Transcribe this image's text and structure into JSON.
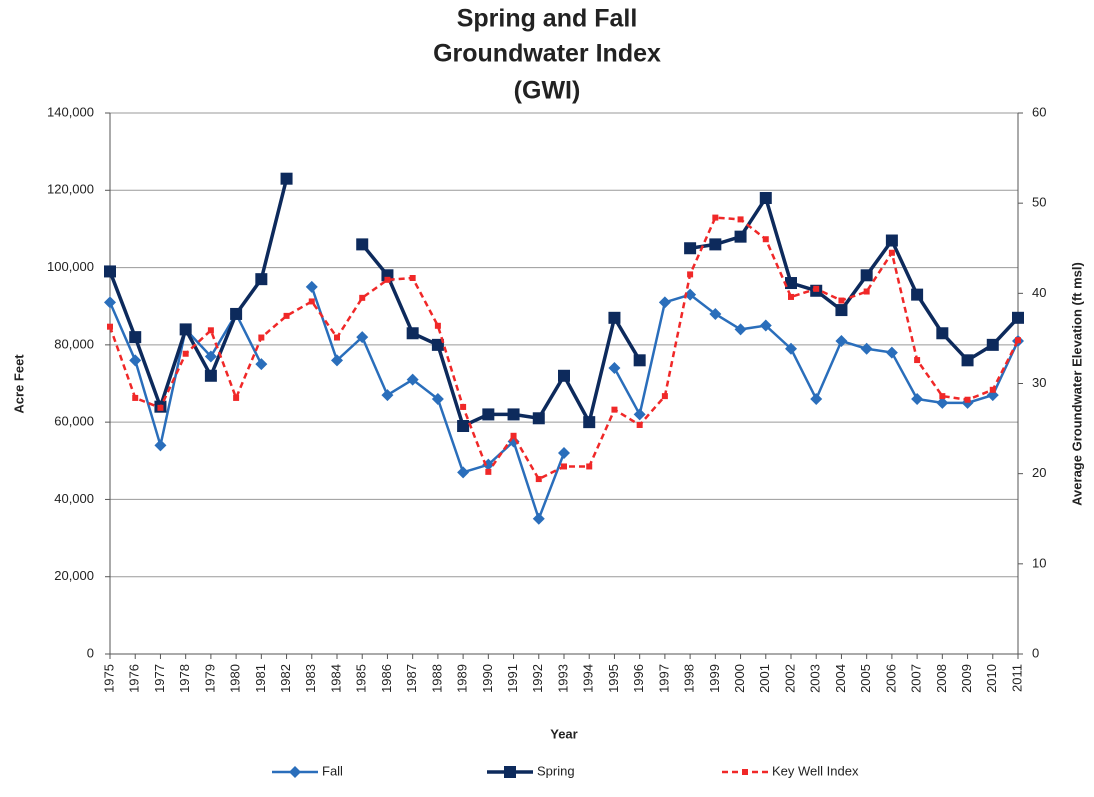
{
  "chart_data": {
    "type": "line",
    "title": [
      "Spring and Fall",
      "Groundwater Index",
      "(GWI)"
    ],
    "x_label": "Year",
    "y_label": "Acre Feet",
    "y2_label": "Average Groundwater Elevation (ft msl)",
    "categories": [
      "1975",
      "1976",
      "1977",
      "1978",
      "1979",
      "1980",
      "1981",
      "1982",
      "1983",
      "1984",
      "1985",
      "1986",
      "1987",
      "1988",
      "1989",
      "1990",
      "1991",
      "1992",
      "1993",
      "1994",
      "1995",
      "1996",
      "1997",
      "1998",
      "1999",
      "2000",
      "2001",
      "2002",
      "2003",
      "2004",
      "2005",
      "2006",
      "2007",
      "2008",
      "2009",
      "2010",
      "2011"
    ],
    "ylim": [
      0,
      140000
    ],
    "yticks": [
      0,
      {
        "value": 20000,
        "label": "20,000"
      },
      {
        "value": 40000,
        "label": "40,000"
      },
      {
        "value": 60000,
        "label": "60,000"
      },
      {
        "value": 80000,
        "label": "80,000"
      },
      {
        "value": 100000,
        "label": "100,000"
      },
      {
        "value": 120000,
        "label": "120,000"
      },
      {
        "value": 140000,
        "label": "140,000"
      }
    ],
    "y2lim": [
      0,
      60
    ],
    "y2ticks": [
      0,
      10,
      20,
      30,
      40,
      50,
      60
    ],
    "grid": true,
    "legend": "bottom",
    "series": [
      {
        "name": "Fall",
        "color": "#2a6ebb",
        "marker": "diamond",
        "line_style": "solid",
        "values": [
          91000,
          76000,
          54000,
          84000,
          77000,
          88000,
          75000,
          null,
          95000,
          76000,
          82000,
          67000,
          71000,
          66000,
          47000,
          49000,
          55000,
          35000,
          52000,
          null,
          74000,
          62000,
          91000,
          93000,
          88000,
          84000,
          85000,
          79000,
          66000,
          81000,
          79000,
          78000,
          66000,
          65000,
          65000,
          67000,
          81000
        ]
      },
      {
        "name": "Spring",
        "color": "#0d2a5c",
        "marker": "square",
        "line_style": "solid",
        "values": [
          99000,
          82000,
          64000,
          84000,
          72000,
          88000,
          97000,
          123000,
          null,
          null,
          106000,
          98000,
          83000,
          80000,
          59000,
          62000,
          62000,
          61000,
          72000,
          60000,
          87000,
          76000,
          null,
          105000,
          106000,
          108000,
          118000,
          96000,
          94000,
          89000,
          98000,
          107000,
          93000,
          83000,
          76000,
          80000,
          87000
        ]
      },
      {
        "name": "Key Well Index",
        "color": "#f02828",
        "marker": "small-square",
        "line_style": "dashed",
        "axis": "y2",
        "values": [
          36.3,
          28.4,
          27.3,
          33.3,
          35.9,
          28.4,
          35.1,
          37.5,
          39.1,
          35.1,
          39.5,
          41.5,
          41.7,
          36.4,
          27.4,
          20.2,
          24.2,
          19.4,
          20.8,
          20.8,
          27.1,
          25.4,
          28.6,
          42.1,
          48.4,
          48.2,
          46.0,
          39.6,
          40.5,
          39.2,
          40.2,
          44.5,
          32.6,
          28.6,
          28.2,
          29.3,
          34.8
        ]
      }
    ]
  }
}
